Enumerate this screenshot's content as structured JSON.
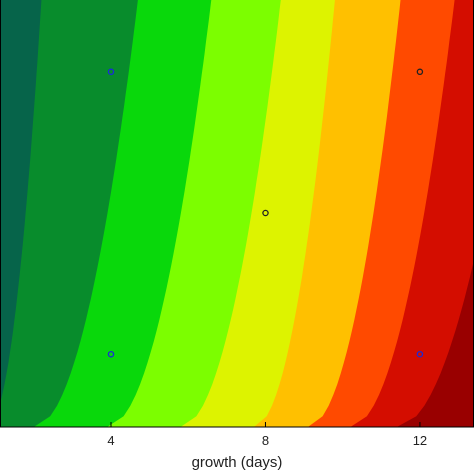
{
  "chart_data": {
    "type": "contour",
    "xlabel": "growth (days)",
    "ylabel": "",
    "title": "",
    "xlim": [
      1.1,
      13.4
    ],
    "ylim": [
      0,
      1
    ],
    "xticks": [
      4,
      8,
      12
    ],
    "xtick_labels": [
      "4",
      "8",
      "12"
    ],
    "grid": false,
    "legend": "none",
    "contour_levels": [
      {
        "color": "#06644A",
        "upper_x_at_top": 2.2,
        "upper_x_at_bottom": 0.8
      },
      {
        "color": "#088C2C",
        "upper_x_at_top": 4.7,
        "upper_x_at_bottom": 2.0
      },
      {
        "color": "#09D80B",
        "upper_x_at_top": 6.6,
        "upper_x_at_bottom": 3.9
      },
      {
        "color": "#7CFE00",
        "upper_x_at_top": 8.4,
        "upper_x_at_bottom": 5.8
      },
      {
        "color": "#DDF300",
        "upper_x_at_top": 9.8,
        "upper_x_at_bottom": 7.7
      },
      {
        "color": "#FFC000",
        "upper_x_at_top": 11.5,
        "upper_x_at_bottom": 9.1
      },
      {
        "color": "#FF4A00",
        "upper_x_at_top": 12.9,
        "upper_x_at_bottom": 10.2
      },
      {
        "color": "#D40D00",
        "upper_x_at_top": 14.6,
        "upper_x_at_bottom": 11.4
      },
      {
        "color": "#990000",
        "upper_x_at_top": 99,
        "upper_x_at_bottom": 99
      }
    ],
    "design_points": [
      {
        "x": 4,
        "y": 0.83,
        "color": "#1a2bd8"
      },
      {
        "x": 12,
        "y": 0.83,
        "color": "#222222"
      },
      {
        "x": 8,
        "y": 0.5,
        "color": "#222222"
      },
      {
        "x": 4,
        "y": 0.17,
        "color": "#1a2bd8"
      },
      {
        "x": 12,
        "y": 0.17,
        "color": "#1a2bd8"
      }
    ]
  }
}
